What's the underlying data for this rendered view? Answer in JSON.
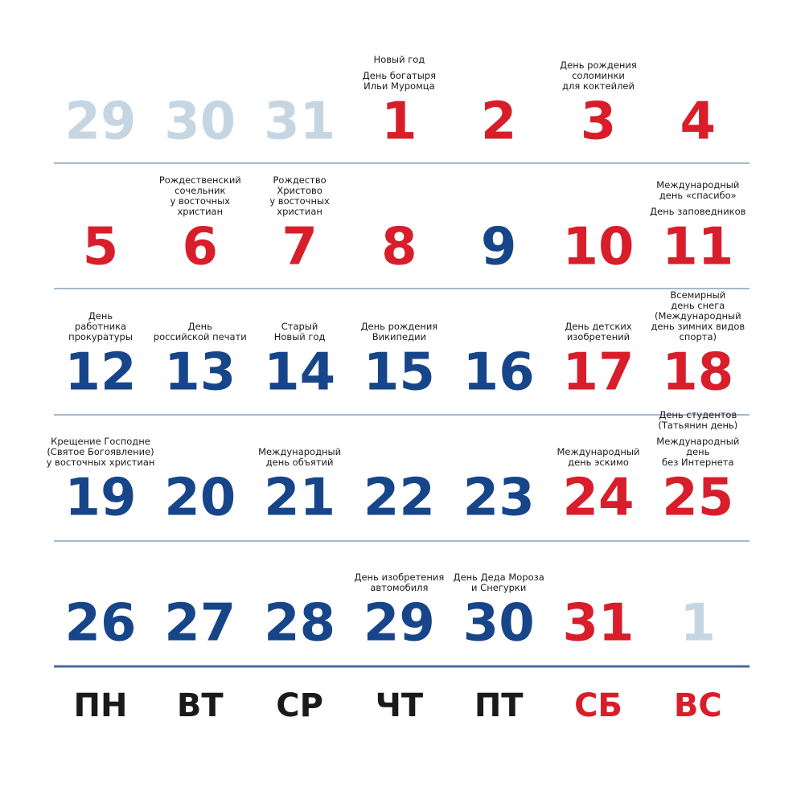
{
  "weeks": [
    {
      "days": [
        {
          "number": "29",
          "color": "#c5d6e2",
          "notes": []
        },
        {
          "number": "30",
          "color": "#c5d6e2",
          "notes": []
        },
        {
          "number": "31",
          "color": "#c5d6e2",
          "notes": []
        },
        {
          "number": "1",
          "color": "#d81e2a",
          "notes": [
            [
              "Новый год"
            ],
            [
              "День богатыря",
              "Ильи Муромца"
            ]
          ]
        },
        {
          "number": "2",
          "color": "#d81e2a",
          "notes": []
        },
        {
          "number": "3",
          "color": "#d81e2a",
          "notes": [
            [
              "День рождения",
              "соломинки",
              "для коктейлей"
            ]
          ]
        },
        {
          "number": "4",
          "color": "#d81e2a",
          "notes": []
        }
      ]
    },
    {
      "days": [
        {
          "number": "5",
          "color": "#d81e2a",
          "notes": []
        },
        {
          "number": "6",
          "color": "#d81e2a",
          "notes": [
            [
              "Рождественский",
              "сочельник",
              "у восточных",
              "христиан"
            ]
          ]
        },
        {
          "number": "7",
          "color": "#d81e2a",
          "notes": [
            [
              "Рождество",
              "Христово",
              "у восточных",
              "христиан"
            ]
          ]
        },
        {
          "number": "8",
          "color": "#d81e2a",
          "notes": []
        },
        {
          "number": "9",
          "color": "#17458a",
          "notes": []
        },
        {
          "number": "10",
          "color": "#d81e2a",
          "notes": []
        },
        {
          "number": "11",
          "color": "#d81e2a",
          "notes": [
            [
              "Международный",
              "день «спасибо»"
            ],
            [
              "День заповедников"
            ]
          ]
        }
      ]
    },
    {
      "days": [
        {
          "number": "12",
          "color": "#17458a",
          "notes": [
            [
              "День",
              "работника",
              "прокуратуры"
            ]
          ]
        },
        {
          "number": "13",
          "color": "#17458a",
          "notes": [
            [
              "День",
              "российской печати"
            ]
          ]
        },
        {
          "number": "14",
          "color": "#17458a",
          "notes": [
            [
              "Старый",
              "Новый год"
            ]
          ]
        },
        {
          "number": "15",
          "color": "#17458a",
          "notes": [
            [
              "День рождения",
              "Википедии"
            ]
          ]
        },
        {
          "number": "16",
          "color": "#17458a",
          "notes": []
        },
        {
          "number": "17",
          "color": "#d81e2a",
          "notes": [
            [
              "День детских",
              "изобретений"
            ]
          ]
        },
        {
          "number": "18",
          "color": "#d81e2a",
          "notes": [
            [
              "Всемирный",
              "день снега",
              "(Международный",
              "день зимних видов",
              "спорта)"
            ]
          ]
        }
      ]
    },
    {
      "days": [
        {
          "number": "19",
          "color": "#17458a",
          "notes": [
            [
              "Крещение Господне",
              "(Святое Богоявление)",
              "у восточных христиан"
            ]
          ]
        },
        {
          "number": "20",
          "color": "#17458a",
          "notes": []
        },
        {
          "number": "21",
          "color": "#17458a",
          "notes": [
            [
              "Международный",
              "день объятий"
            ]
          ]
        },
        {
          "number": "22",
          "color": "#17458a",
          "notes": []
        },
        {
          "number": "23",
          "color": "#17458a",
          "notes": []
        },
        {
          "number": "24",
          "color": "#d81e2a",
          "notes": [
            [
              "Международный",
              "день эскимо"
            ]
          ]
        },
        {
          "number": "25",
          "color": "#d81e2a",
          "notes": [
            [
              "День студентов",
              "(Татьянин день)"
            ],
            [
              "Международный",
              "день",
              "без Интернета"
            ]
          ]
        }
      ]
    },
    {
      "days": [
        {
          "number": "26",
          "color": "#17458a",
          "notes": []
        },
        {
          "number": "27",
          "color": "#17458a",
          "notes": []
        },
        {
          "number": "28",
          "color": "#17458a",
          "notes": []
        },
        {
          "number": "29",
          "color": "#17458a",
          "notes": [
            [
              "День изобретения",
              "автомобиля"
            ]
          ]
        },
        {
          "number": "30",
          "color": "#17458a",
          "notes": [
            [
              "День Деда Мороза",
              "и Снегурки"
            ]
          ]
        },
        {
          "number": "31",
          "color": "#d81e2a",
          "notes": []
        },
        {
          "number": "1",
          "color": "#c5d6e2",
          "notes": []
        }
      ]
    }
  ],
  "weekdays": [
    {
      "label": "ПН",
      "color": "#1a1a1a"
    },
    {
      "label": "ВТ",
      "color": "#1a1a1a"
    },
    {
      "label": "СР",
      "color": "#1a1a1a"
    },
    {
      "label": "ЧТ",
      "color": "#1a1a1a"
    },
    {
      "label": "ПТ",
      "color": "#1a1a1a"
    },
    {
      "label": "СБ",
      "color": "#d81e2a"
    },
    {
      "label": "ВС",
      "color": "#d81e2a"
    }
  ]
}
